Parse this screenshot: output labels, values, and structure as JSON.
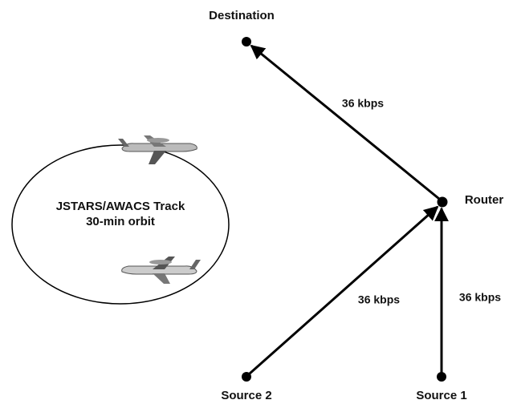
{
  "nodes": [
    {
      "label": "Destination"
    },
    {
      "label": "Router"
    },
    {
      "label": "Source 2"
    },
    {
      "label": "Source 1"
    }
  ],
  "links": [
    {
      "label": "36 kbps"
    },
    {
      "label": "36 kbps"
    },
    {
      "label": "36 kbps"
    }
  ],
  "track": {
    "title": "JSTARS/AWACS Track",
    "subtitle": "30-min orbit"
  }
}
